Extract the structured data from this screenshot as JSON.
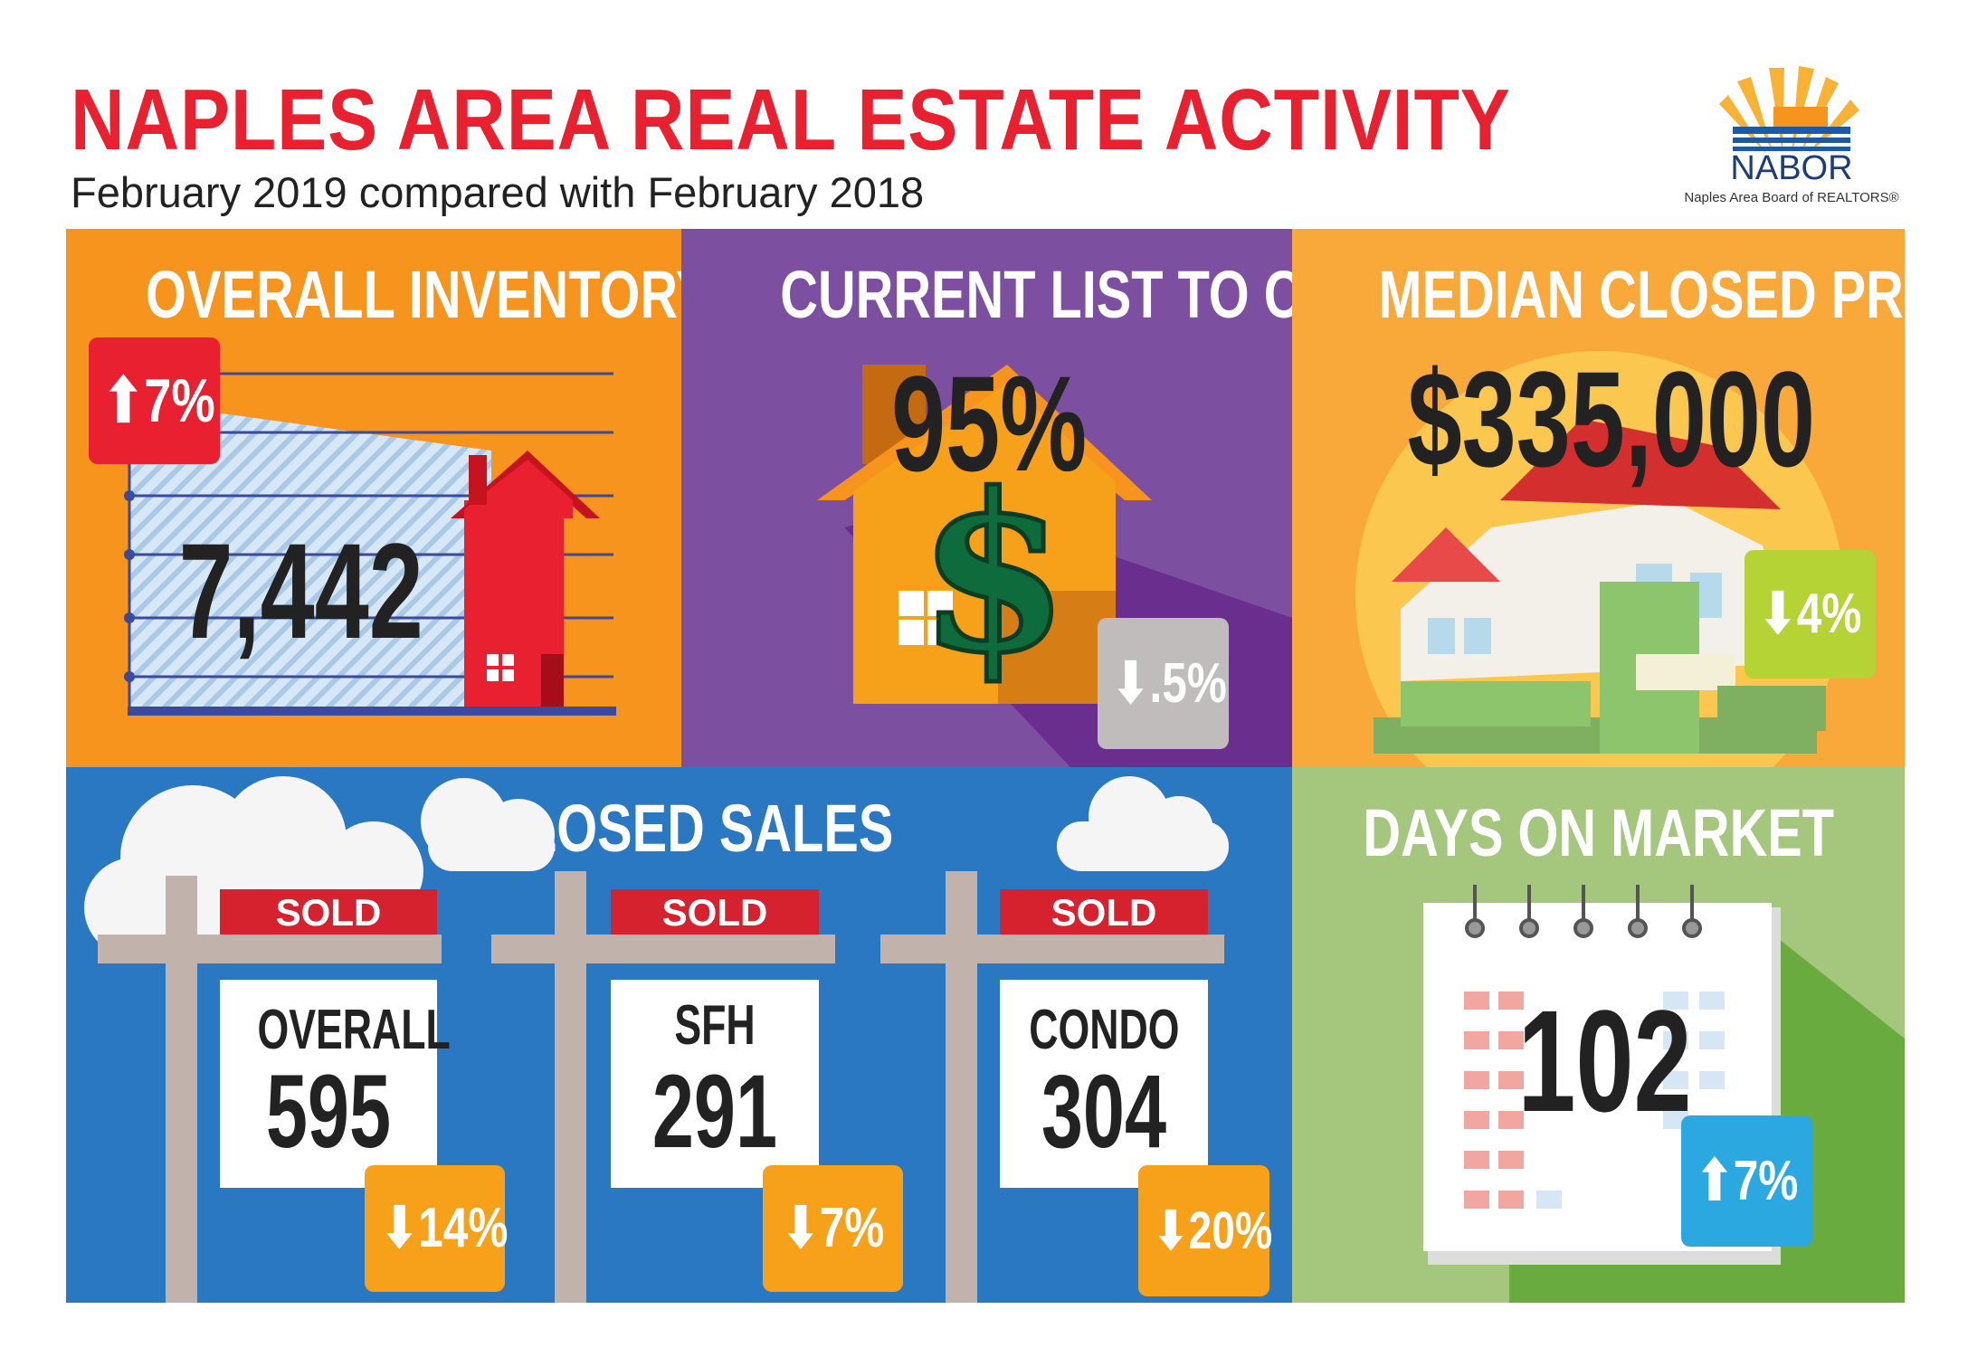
{
  "header": {
    "title": "NAPLES AREA REAL ESTATE ACTIVITY",
    "subtitle": "February 2019 compared with February 2018",
    "logo_name": "NABOR",
    "logo_caption": "Naples Area Board of REALTORS®"
  },
  "panels": {
    "inventory": {
      "title": "OVERALL INVENTORY",
      "value": "7,442",
      "change": "⬆7%",
      "color": "#f7941d"
    },
    "list_to_closed": {
      "title": "CURRENT LIST TO CLOSED",
      "value": "95%",
      "change": "⬇.5%",
      "color": "#7d4fa0"
    },
    "median_price": {
      "title": "MEDIAN CLOSED PRICE",
      "value": "$335,000",
      "change": "⬇4%",
      "color": "#f9a93a"
    },
    "closed_sales": {
      "title": "CLOSED SALES",
      "color": "#2a78c2",
      "signs": [
        {
          "sold": "SOLD",
          "label": "OVERALL",
          "value": "595",
          "change": "⬇14%"
        },
        {
          "sold": "SOLD",
          "label": "SFH",
          "value": "291",
          "change": "⬇7%"
        },
        {
          "sold": "SOLD",
          "label": "CONDO",
          "value": "304",
          "change": "⬇20%"
        }
      ]
    },
    "days_on_market": {
      "title": "DAYS ON MARKET",
      "value": "102",
      "change": "⬆7%",
      "color": "#a5c67d"
    }
  },
  "colors": {
    "red": "#e8202f",
    "orange_badge": "#f7a019",
    "gray_badge": "#c0bcbc",
    "lime_badge": "#b5d334",
    "blue_badge": "#2ca8e0"
  }
}
